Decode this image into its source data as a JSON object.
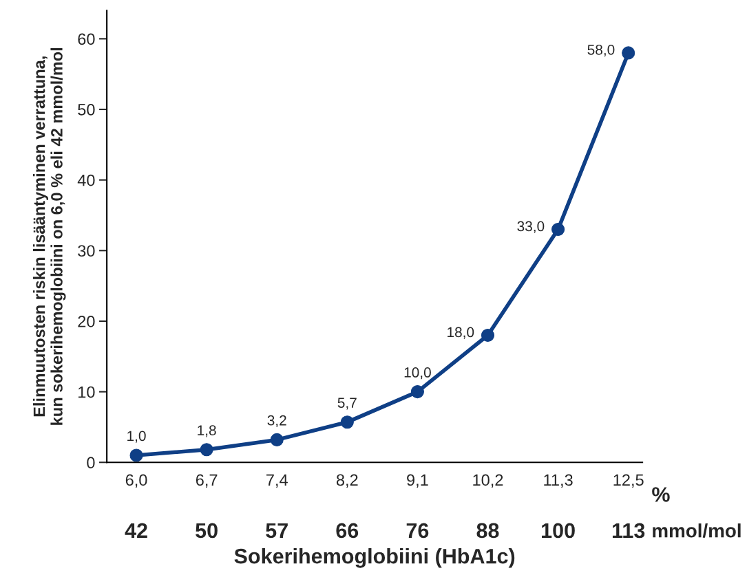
{
  "chart_data": {
    "type": "line",
    "xlabel": "Sokerihemoglobiini (HbA1c)",
    "ylabel": "Elinmuutosten riskin lisääntyminen verrattuna,\nkun sokerihemoglobiini on 6,0 % eli 42 mmol/mol",
    "categories": [
      "6,0",
      "6,7",
      "7,4",
      "8,2",
      "9,1",
      "10,2",
      "11,3",
      "12,5"
    ],
    "series": [
      {
        "color": "#0f3f86",
        "values": [
          1.0,
          1.8,
          3.2,
          5.7,
          10.0,
          18.0,
          33.0,
          58.0
        ],
        "value_labels": [
          "1,0",
          "1,8",
          "3,2",
          "5,7",
          "10,0",
          "18,0",
          "33,0",
          "58,0"
        ]
      }
    ],
    "ylim": [
      0,
      64
    ],
    "yticks": [
      0,
      10,
      20,
      30,
      40,
      50,
      60
    ],
    "marker": "circle",
    "line_style": "solid",
    "grid": false,
    "legend": false,
    "annotations": [
      "%",
      "mmol/mol",
      "42",
      "50",
      "57",
      "66",
      "76",
      "88",
      "100",
      "113"
    ]
  }
}
